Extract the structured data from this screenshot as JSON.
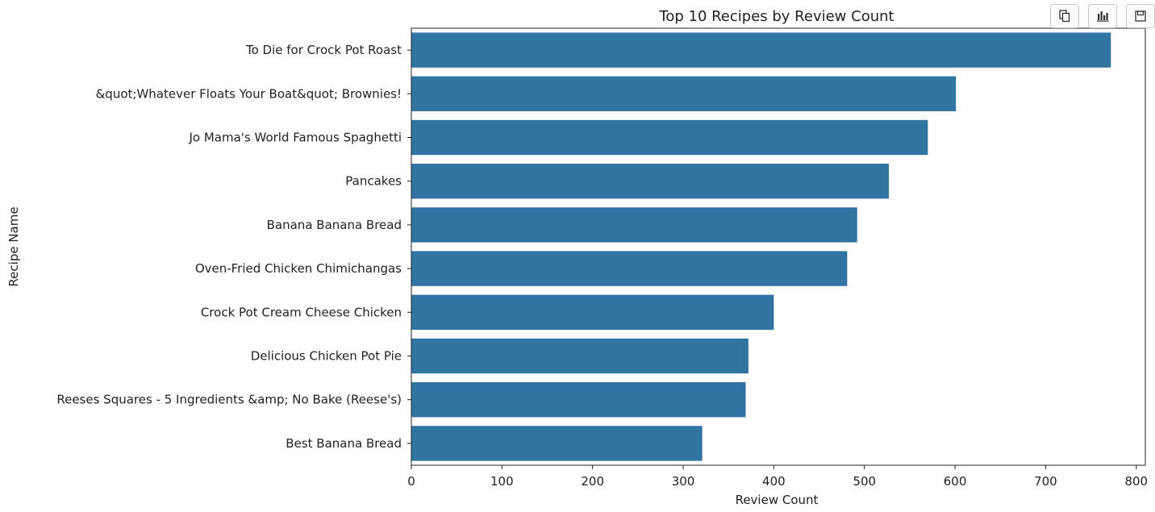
{
  "chart_data": {
    "type": "bar",
    "orientation": "horizontal",
    "title": "Top 10 Recipes by Review Count",
    "xlabel": "Review Count",
    "ylabel": "Recipe Name",
    "xlim": [
      0,
      810
    ],
    "xticks": [
      0,
      100,
      200,
      300,
      400,
      500,
      600,
      700,
      800
    ],
    "grid": false,
    "bar_color": "#3274a1",
    "categories": [
      "To Die for Crock Pot Roast",
      "&quot;Whatever Floats Your Boat&quot; Brownies!",
      "Jo Mama's World Famous Spaghetti",
      "Pancakes",
      "Banana Banana Bread",
      "Oven-Fried Chicken Chimichangas",
      "Crock Pot Cream Cheese Chicken",
      "Delicious Chicken Pot Pie",
      "Reeses Squares - 5 Ingredients &amp; No Bake (Reese's)",
      "Best Banana Bread"
    ],
    "values": [
      772,
      601,
      570,
      527,
      492,
      481,
      400,
      372,
      369,
      321
    ]
  },
  "toolbar": {
    "buttons": [
      {
        "name": "copy-button",
        "icon": "copy-icon"
      },
      {
        "name": "chart-view-button",
        "icon": "bar-chart-icon"
      },
      {
        "name": "save-button",
        "icon": "save-icon"
      }
    ]
  }
}
